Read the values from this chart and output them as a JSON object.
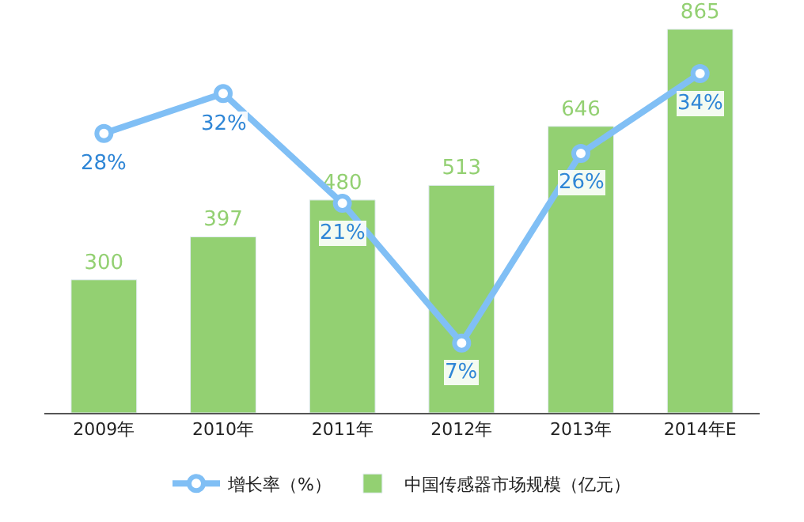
{
  "chart_data": {
    "type": "bar",
    "categories": [
      "2009年",
      "2010年",
      "2011年",
      "2012年",
      "2013年",
      "2014年E"
    ],
    "series": [
      {
        "name": "增长率（%）",
        "type": "line",
        "axis": "y2",
        "color": "#80bff5",
        "marker": "circle",
        "values": [
          28,
          32,
          21,
          7,
          26,
          34
        ],
        "value_labels": [
          "28%",
          "32%",
          "21%",
          "7%",
          "26%",
          "34%"
        ]
      },
      {
        "name": "中国传感器市场规模（亿元）",
        "color": "#93d072",
        "values": [
          300,
          397,
          480,
          513,
          646,
          865
        ],
        "value_labels": [
          "300",
          "397",
          "480",
          "513",
          "646",
          "865"
        ]
      }
    ],
    "grid": false,
    "legend": "bottom",
    "tick_labels": "x"
  }
}
